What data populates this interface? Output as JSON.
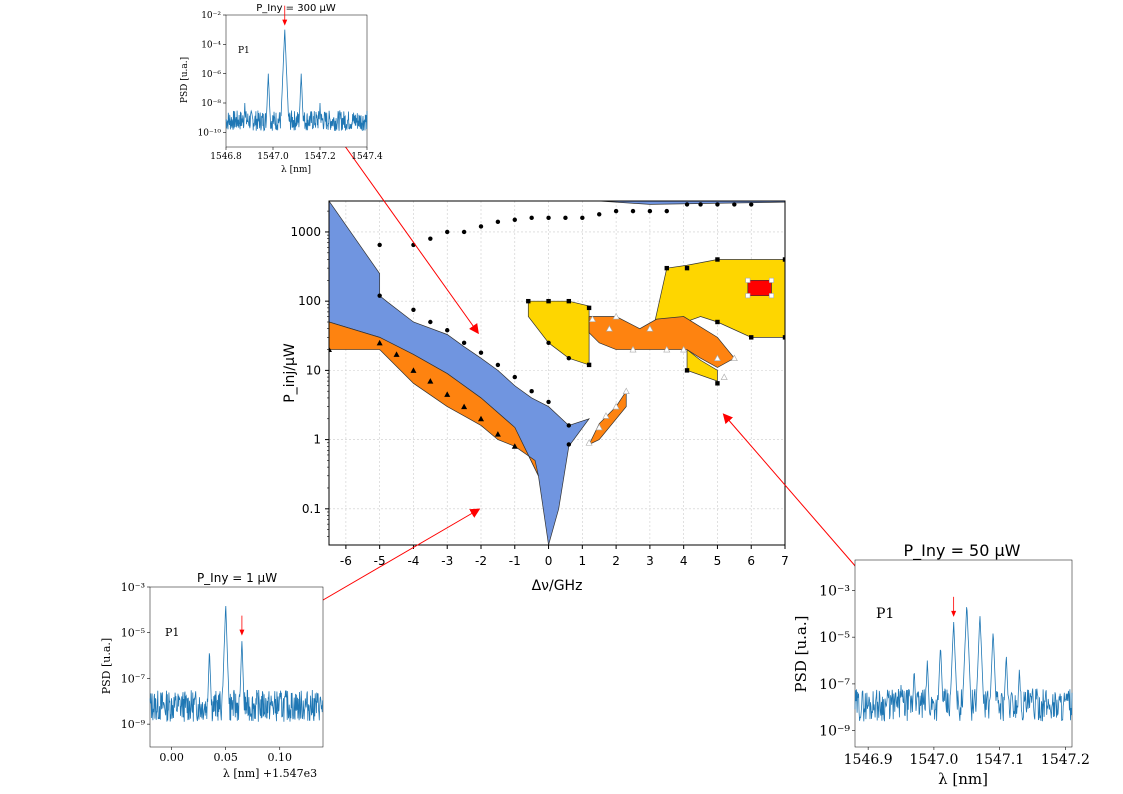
{
  "chart_data": [
    {
      "id": "main",
      "type": "area",
      "xlabel": "Δν/GHz",
      "ylabel": "P_inj/μW",
      "xlim": [
        -6.5,
        7
      ],
      "ylim": [
        0.03,
        2800
      ],
      "y_scale": "log",
      "grid": true,
      "x_ticks": [
        "-6",
        "-5",
        "-4",
        "-3",
        "-2",
        "-1",
        "0",
        "1",
        "2",
        "3",
        "4",
        "5",
        "6",
        "7"
      ],
      "y_ticks": [
        "0.1",
        "1",
        "10",
        "100",
        "1000"
      ],
      "regions": [
        {
          "color": "#7095e0",
          "points": [
            [
              -6.5,
              2800
            ],
            [
              1.5,
              2800
            ],
            [
              3,
              2500
            ],
            [
              7,
              2700
            ],
            [
              7,
              2800
            ],
            [
              -6.5,
              2800
            ]
          ]
        },
        {
          "color": "#7095e0",
          "points": [
            [
              -6.5,
              2800
            ],
            [
              -6.5,
              50
            ],
            [
              -5,
              30
            ],
            [
              -4,
              17
            ],
            [
              -3,
              9
            ],
            [
              -2,
              4
            ],
            [
              -1,
              1.5
            ],
            [
              -0.3,
              0.3
            ],
            [
              0,
              0.03
            ],
            [
              0.3,
              0.1
            ],
            [
              0.6,
              0.8
            ],
            [
              1.2,
              2
            ],
            [
              0.6,
              1.6
            ],
            [
              0,
              3
            ],
            [
              -0.5,
              4
            ],
            [
              -1,
              6
            ],
            [
              -1.5,
              10
            ],
            [
              -2,
              15
            ],
            [
              -2.5,
              22
            ],
            [
              -3,
              33
            ],
            [
              -4,
              50
            ],
            [
              -4.8,
              100
            ],
            [
              -5,
              120
            ],
            [
              -5,
              250
            ],
            [
              -6.5,
              2800
            ]
          ]
        },
        {
          "color": "#fe8310",
          "points": [
            [
              -6.5,
              50
            ],
            [
              -5,
              30
            ],
            [
              -4,
              17
            ],
            [
              -3,
              9
            ],
            [
              -2,
              4
            ],
            [
              -1,
              1.5
            ],
            [
              -0.3,
              0.3
            ],
            [
              -0.4,
              0.5
            ],
            [
              -1,
              0.8
            ],
            [
              -1.5,
              1
            ],
            [
              -2,
              1.6
            ],
            [
              -2.5,
              2.2
            ],
            [
              -3,
              3
            ],
            [
              -4,
              6.5
            ],
            [
              -5,
              20
            ],
            [
              -6.5,
              20
            ]
          ]
        },
        {
          "color": "#fe8310",
          "points": [
            [
              1.2,
              0.85
            ],
            [
              1.5,
              1.7
            ],
            [
              2,
              3
            ],
            [
              2.3,
              5
            ],
            [
              2.3,
              3
            ],
            [
              1.5,
              1
            ]
          ]
        },
        {
          "color": "#fed600",
          "points": [
            [
              -0.6,
              100
            ],
            [
              0.6,
              100
            ],
            [
              1.2,
              85
            ],
            [
              1.2,
              12
            ],
            [
              0.6,
              15
            ],
            [
              0,
              25
            ],
            [
              -0.6,
              60
            ]
          ]
        },
        {
          "color": "#fed600",
          "points": [
            [
              3.1,
              40
            ],
            [
              3.5,
              300
            ],
            [
              4.1,
              330
            ],
            [
              5,
              400
            ],
            [
              7,
              400
            ],
            [
              7,
              30
            ],
            [
              6,
              30
            ],
            [
              5,
              50
            ],
            [
              4.5,
              60
            ],
            [
              3.5,
              40
            ]
          ]
        },
        {
          "color": "#fed600",
          "points": [
            [
              4.1,
              20
            ],
            [
              4.1,
              10
            ],
            [
              5,
              7
            ],
            [
              5,
              10
            ],
            [
              4.5,
              14
            ]
          ]
        },
        {
          "color": "#fe8310",
          "points": [
            [
              1.2,
              60
            ],
            [
              2,
              60
            ],
            [
              2.7,
              40
            ],
            [
              3.2,
              55
            ],
            [
              4,
              60
            ],
            [
              5,
              30
            ],
            [
              5.5,
              15
            ],
            [
              5,
              11
            ],
            [
              4.5,
              15
            ],
            [
              4.1,
              20
            ],
            [
              2,
              20
            ],
            [
              1.5,
              25
            ],
            [
              1.2,
              35
            ]
          ]
        },
        {
          "color": "#ff0000",
          "points": [
            [
              5.9,
              200
            ],
            [
              6.6,
              200
            ],
            [
              6.6,
              120
            ],
            [
              5.9,
              120
            ]
          ]
        }
      ],
      "markers": {
        "circles": [
          [
            -5,
            650
          ],
          [
            -4,
            650
          ],
          [
            -3.5,
            800
          ],
          [
            -3,
            1000
          ],
          [
            -2.5,
            1000
          ],
          [
            -2,
            1200
          ],
          [
            -1.5,
            1400
          ],
          [
            -1,
            1500
          ],
          [
            -0.5,
            1600
          ],
          [
            0,
            1600
          ],
          [
            0.5,
            1600
          ],
          [
            1,
            1600
          ],
          [
            1.5,
            1800
          ],
          [
            2,
            2000
          ],
          [
            2.5,
            2000
          ],
          [
            3,
            2000
          ],
          [
            3.5,
            2000
          ],
          [
            4.1,
            2500
          ],
          [
            4.5,
            2500
          ],
          [
            5,
            2500
          ],
          [
            5.5,
            2500
          ],
          [
            6,
            2500
          ],
          [
            -5,
            120
          ],
          [
            -4,
            75
          ],
          [
            -3.5,
            50
          ],
          [
            -3,
            38
          ],
          [
            -2.5,
            25
          ],
          [
            -2,
            18
          ],
          [
            -1.5,
            12
          ],
          [
            -1,
            8
          ],
          [
            -0.5,
            5
          ],
          [
            0,
            3.5
          ],
          [
            0.6,
            1.6
          ],
          [
            0.6,
            0.85
          ],
          [
            0,
            25
          ],
          [
            0.6,
            15
          ]
        ],
        "squares": [
          [
            -0.6,
            100
          ],
          [
            0,
            100
          ],
          [
            0.6,
            100
          ],
          [
            1.2,
            80
          ],
          [
            1.2,
            12
          ],
          [
            3.5,
            300
          ],
          [
            4.1,
            300
          ],
          [
            5,
            400
          ],
          [
            7,
            400
          ],
          [
            7,
            30
          ],
          [
            6,
            30
          ],
          [
            5,
            50
          ],
          [
            4.1,
            10
          ],
          [
            5,
            6.5
          ]
        ],
        "triangles": [
          [
            -6.5,
            20
          ],
          [
            -5,
            25
          ],
          [
            -4.5,
            17
          ],
          [
            -4,
            10
          ],
          [
            -3.5,
            7
          ],
          [
            -3,
            4.5
          ],
          [
            -2.5,
            3
          ],
          [
            -2,
            2
          ],
          [
            -1.5,
            1.2
          ],
          [
            -1,
            0.8
          ]
        ],
        "open_triangles": [
          [
            1.2,
            0.9
          ],
          [
            1.5,
            1.5
          ],
          [
            1.7,
            2.2
          ],
          [
            2,
            3
          ],
          [
            2.3,
            5
          ],
          [
            1.3,
            55
          ],
          [
            1.8,
            40
          ],
          [
            2,
            60
          ],
          [
            2.5,
            20
          ],
          [
            3,
            40
          ],
          [
            3.5,
            20
          ],
          [
            4,
            20
          ],
          [
            5,
            15
          ],
          [
            5.5,
            15
          ],
          [
            5.2,
            8
          ]
        ],
        "open_squares": [
          [
            5.9,
            200
          ],
          [
            6.6,
            200
          ],
          [
            6.6,
            120
          ],
          [
            5.9,
            120
          ]
        ]
      }
    },
    {
      "id": "inset_top",
      "type": "line",
      "title": "P_Iny = 300 μW",
      "xlabel": "λ [nm]",
      "ylabel": "PSD [u.a.]",
      "annotation": "P1",
      "x_ticks": [
        "1546.8",
        "1547.0",
        "1547.2",
        "1547.4"
      ],
      "xlim": [
        1546.8,
        1547.4
      ],
      "y_ticks": [
        "10⁻²",
        "10⁻⁴",
        "10⁻⁶",
        "10⁻⁸",
        "10⁻¹⁰"
      ],
      "ylim": [
        1e-11,
        0.01
      ],
      "y_scale": "log",
      "peaks": [
        [
          1547.05,
          0.001
        ],
        [
          1546.98,
          1e-06
        ],
        [
          1547.12,
          1e-06
        ],
        [
          1546.88,
          1e-08
        ],
        [
          1547.2,
          1e-08
        ]
      ],
      "marker_x": 1547.05
    },
    {
      "id": "inset_left",
      "type": "line",
      "title": "P_Iny = 1 μW",
      "xlabel": "λ [nm] +1.547e3",
      "ylabel": "PSD [u.a.]",
      "annotation": "P1",
      "x_ticks": [
        "0.00",
        "0.05",
        "0.10"
      ],
      "xlim": [
        -0.02,
        0.14
      ],
      "y_ticks": [
        "10⁻³",
        "10⁻⁵",
        "10⁻⁷",
        "10⁻⁹"
      ],
      "ylim": [
        1e-10,
        0.001
      ],
      "y_scale": "log",
      "peaks": [
        [
          0.05,
          0.0002
        ],
        [
          0.035,
          2e-06
        ],
        [
          0.065,
          5e-06
        ]
      ],
      "marker_x": 0.065
    },
    {
      "id": "inset_right",
      "type": "line",
      "title": "P_Iny = 50 μW",
      "xlabel": "λ [nm]",
      "ylabel": "PSD [u.a.]",
      "annotation": "P1",
      "x_ticks": [
        "1546.9",
        "1547.0",
        "1547.1",
        "1547.2"
      ],
      "xlim": [
        1546.88,
        1547.21
      ],
      "y_ticks": [
        "10⁻³",
        "10⁻⁵",
        "10⁻⁷",
        "10⁻⁹"
      ],
      "ylim": [
        2e-10,
        0.02
      ],
      "y_scale": "log",
      "peaks": [
        [
          1547.05,
          0.0003
        ],
        [
          1547.03,
          5e-05
        ],
        [
          1547.07,
          0.0001
        ],
        [
          1547.01,
          5e-06
        ],
        [
          1547.09,
          2e-05
        ],
        [
          1546.99,
          1e-06
        ],
        [
          1547.11,
          2e-06
        ],
        [
          1546.97,
          5e-07
        ],
        [
          1547.13,
          5e-07
        ],
        [
          1546.95,
          1e-07
        ],
        [
          1547.15,
          1e-07
        ],
        [
          1546.93,
          5e-08
        ],
        [
          1547.17,
          5e-08
        ],
        [
          1546.91,
          1e-08
        ],
        [
          1547.19,
          2e-09
        ]
      ],
      "marker_x": 1547.03
    }
  ]
}
